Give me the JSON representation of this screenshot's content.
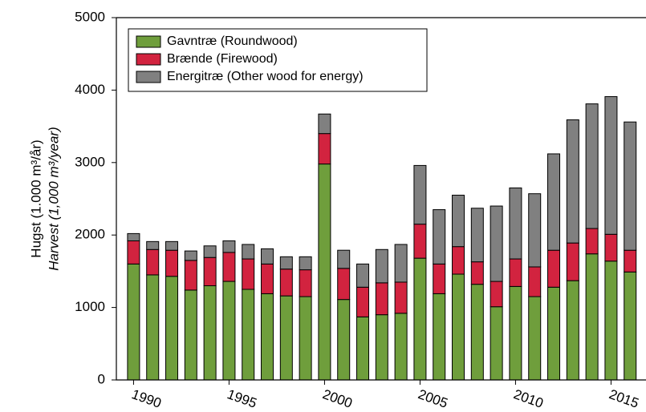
{
  "chart_data": {
    "type": "bar",
    "stacked": true,
    "y_label": "Hugst (1.000 m³/år)",
    "y_label_2": "Harvest (1,000 m³/year)",
    "x": [
      1990,
      1991,
      1992,
      1993,
      1994,
      1995,
      1996,
      1997,
      1998,
      1999,
      2000,
      2001,
      2002,
      2003,
      2004,
      2005,
      2006,
      2007,
      2008,
      2009,
      2010,
      2011,
      2012,
      2013,
      2014,
      2015,
      2016
    ],
    "series": [
      {
        "name": "Gavntræ (Roundwood)",
        "color": "#6f9e3c",
        "values": [
          1600,
          1450,
          1430,
          1240,
          1300,
          1360,
          1250,
          1190,
          1160,
          1150,
          2980,
          1110,
          870,
          900,
          920,
          1680,
          1190,
          1460,
          1320,
          1010,
          1290,
          1150,
          1280,
          1370,
          1740,
          1640,
          1490
        ]
      },
      {
        "name": "Brænde (Firewood)",
        "color": "#d2233f",
        "values": [
          320,
          350,
          360,
          410,
          390,
          400,
          420,
          410,
          370,
          370,
          420,
          430,
          410,
          440,
          430,
          470,
          410,
          380,
          310,
          350,
          380,
          410,
          510,
          520,
          350,
          370,
          300
        ]
      },
      {
        "name": "Energitræ (Other wood for energy)",
        "color": "#808080",
        "values": [
          100,
          110,
          120,
          130,
          160,
          160,
          200,
          210,
          170,
          180,
          270,
          250,
          320,
          460,
          520,
          810,
          750,
          710,
          740,
          1040,
          980,
          1010,
          1330,
          1700,
          1720,
          1900,
          1770
        ]
      }
    ],
    "xlim": [
      1989.1,
      2018
    ],
    "xticks": [
      1990,
      1995,
      2000,
      2005,
      2010,
      2015
    ],
    "ylim": [
      0,
      5000
    ],
    "yticks": [
      0,
      1000,
      2000,
      3000,
      4000,
      5000
    ],
    "legend": "upper left"
  }
}
